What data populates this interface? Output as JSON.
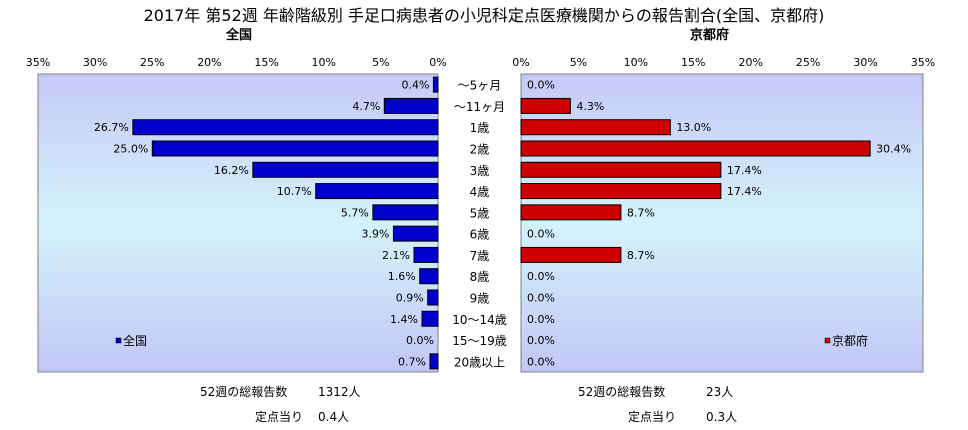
{
  "title": "2017年 第52週 年齢階級別 手足口病患者の小児科定点医療機関からの報告割合(全国、京都府)",
  "panels": {
    "left": {
      "title": "全国",
      "legend": "全国",
      "color": "#0000cc"
    },
    "right": {
      "title": "京都府",
      "legend": "京都府",
      "color": "#cc0000"
    }
  },
  "stats": {
    "left": {
      "total_label": "52週の総報告数",
      "total_value": "1312人",
      "per_label": "定点当り",
      "per_value": "0.4人"
    },
    "right": {
      "total_label": "52週の総報告数",
      "total_value": "23人",
      "per_label": "定点当り",
      "per_value": "0.3人"
    }
  },
  "chart_data": {
    "type": "bar",
    "orientation": "horizontal",
    "unit": "%",
    "xlim": [
      0,
      35
    ],
    "ticks": [
      "0%",
      "5%",
      "10%",
      "15%",
      "20%",
      "25%",
      "30%",
      "35%"
    ],
    "tick_values": [
      0,
      5,
      10,
      15,
      20,
      25,
      30,
      35
    ],
    "categories": [
      "～5ヶ月",
      "～11ヶ月",
      "1歳",
      "2歳",
      "3歳",
      "4歳",
      "5歳",
      "6歳",
      "7歳",
      "8歳",
      "9歳",
      "10～14歳",
      "15～19歳",
      "20歳以上"
    ],
    "series": [
      {
        "name": "全国",
        "values": [
          0.4,
          4.7,
          26.7,
          25.0,
          16.2,
          10.7,
          5.7,
          3.9,
          2.1,
          1.6,
          0.9,
          1.4,
          0.0,
          0.7
        ]
      },
      {
        "name": "京都府",
        "values": [
          0.0,
          4.3,
          13.0,
          30.4,
          17.4,
          17.4,
          8.7,
          0.0,
          8.7,
          0.0,
          0.0,
          0.0,
          0.0,
          0.0
        ]
      }
    ]
  }
}
